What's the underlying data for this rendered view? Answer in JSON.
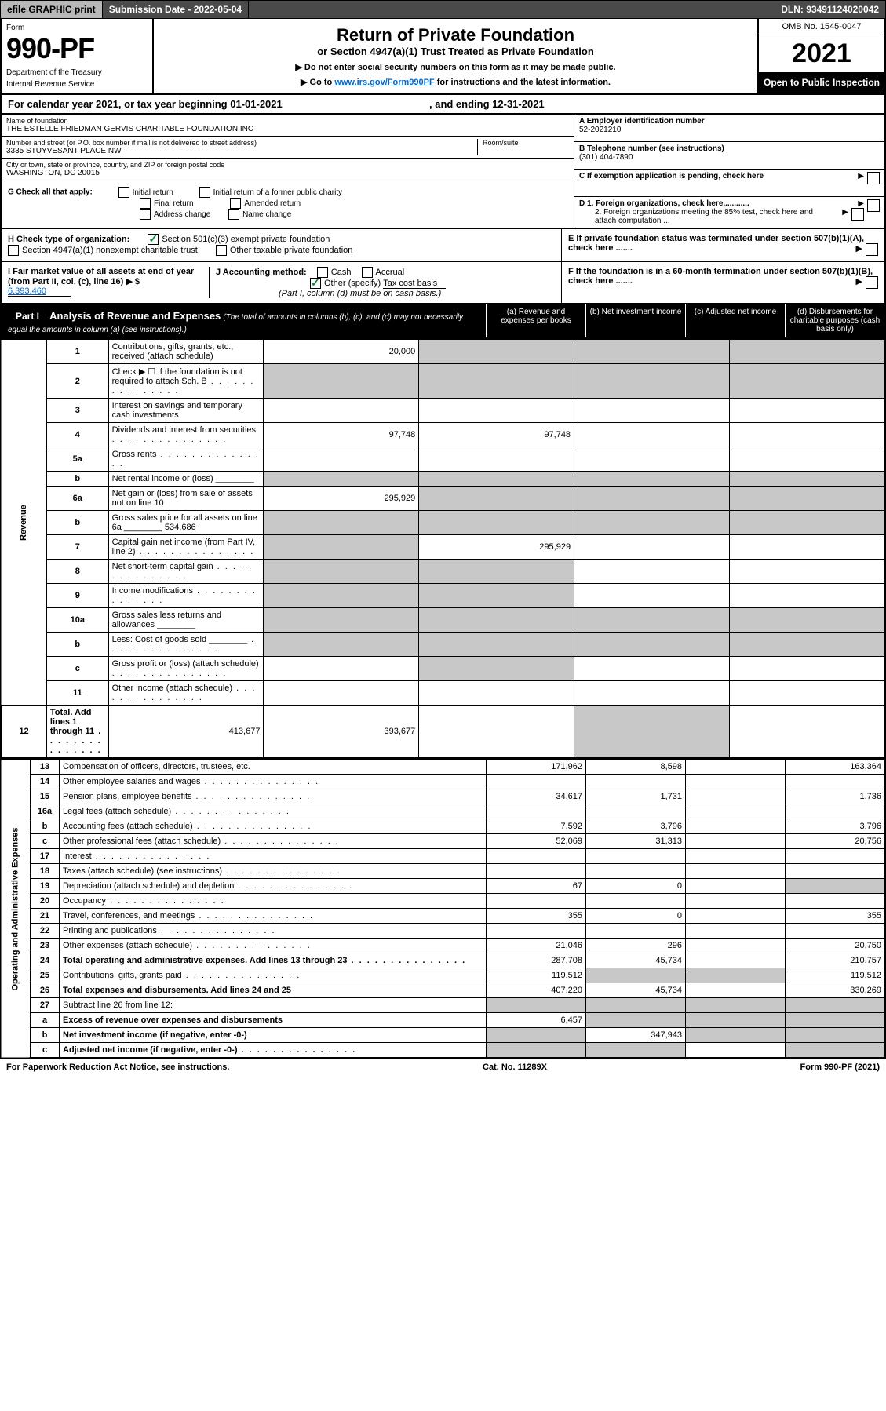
{
  "topbar": {
    "efile": "efile GRAPHIC print",
    "subdate_lbl": "Submission Date - ",
    "subdate": "2022-05-04",
    "dln_lbl": "DLN: ",
    "dln": "93491124020042"
  },
  "header": {
    "form": "Form",
    "num": "990-PF",
    "dept": "Department of the Treasury",
    "irs": "Internal Revenue Service",
    "title": "Return of Private Foundation",
    "sub1": "or Section 4947(a)(1) Trust Treated as Private Foundation",
    "sub2a": "▶ Do not enter social security numbers on this form as it may be made public.",
    "sub2b": "▶ Go to ",
    "link": "www.irs.gov/Form990PF",
    "sub2c": " for instructions and the latest information.",
    "omb": "OMB No. 1545-0047",
    "year": "2021",
    "open": "Open to Public Inspection"
  },
  "calrow": {
    "a": "For calendar year 2021, or tax year beginning ",
    "b": "01-01-2021",
    "c": ", and ending ",
    "d": "12-31-2021"
  },
  "id": {
    "name_lbl": "Name of foundation",
    "name": "THE ESTELLE FRIEDMAN GERVIS CHARITABLE FOUNDATION INC",
    "addr_lbl": "Number and street (or P.O. box number if mail is not delivered to street address)",
    "room_lbl": "Room/suite",
    "addr": "3335 STUYVESANT PLACE NW",
    "city_lbl": "City or town, state or province, country, and ZIP or foreign postal code",
    "city": "WASHINGTON, DC  20015",
    "a_lbl": "A Employer identification number",
    "a": "52-2021210",
    "b_lbl": "B Telephone number (see instructions)",
    "b": "(301) 404-7890",
    "c_lbl": "C If exemption application is pending, check here",
    "d1_lbl": "D 1. Foreign organizations, check here............",
    "d2_lbl": "2. Foreign organizations meeting the 85% test, check here and attach computation ...",
    "e_lbl": "E  If private foundation status was terminated under section 507(b)(1)(A), check here .......",
    "f_lbl": "F  If the foundation is in a 60-month termination under section 507(b)(1)(B), check here ......."
  },
  "g": {
    "lbl": "G Check all that apply:",
    "o1": "Initial return",
    "o2": "Initial return of a former public charity",
    "o3": "Final return",
    "o4": "Amended return",
    "o5": "Address change",
    "o6": "Name change"
  },
  "h": {
    "lbl": "H Check type of organization:",
    "o1": "Section 501(c)(3) exempt private foundation",
    "o2": "Section 4947(a)(1) nonexempt charitable trust",
    "o3": "Other taxable private foundation"
  },
  "i": {
    "lbl": "I Fair market value of all assets at end of year (from Part II, col. (c), line 16) ▶ $",
    "val": "6,393,460"
  },
  "j": {
    "lbl": "J Accounting method:",
    "o1": "Cash",
    "o2": "Accrual",
    "o3": "Other (specify)",
    "o3v": "Tax cost basis",
    "note": "(Part I, column (d) must be on cash basis.)"
  },
  "part1": {
    "bar": "Part I",
    "title": "Analysis of Revenue and Expenses",
    "note": "(The total of amounts in columns (b), (c), and (d) may not necessarily equal the amounts in column (a) (see instructions).)",
    "ca": "(a)   Revenue and expenses per books",
    "cb": "(b)   Net investment income",
    "cc": "(c)   Adjusted net income",
    "cd": "(d)   Disbursements for charitable purposes (cash basis only)"
  },
  "side": {
    "rev": "Revenue",
    "exp": "Operating and Administrative Expenses"
  },
  "rows": [
    {
      "n": "1",
      "d": "Contributions, gifts, grants, etc., received (attach schedule)",
      "a": "20,000",
      "shade_bcd": true
    },
    {
      "n": "2",
      "d": "Check ▶ ☐ if the foundation is not required to attach Sch. B",
      "dots": true,
      "noamt": true
    },
    {
      "n": "3",
      "d": "Interest on savings and temporary cash investments"
    },
    {
      "n": "4",
      "d": "Dividends and interest from securities",
      "dots": true,
      "a": "97,748",
      "b": "97,748"
    },
    {
      "n": "5a",
      "d": "Gross rents",
      "dots": true
    },
    {
      "n": "b",
      "d": "Net rental income or (loss)",
      "inline": true,
      "noamt": true
    },
    {
      "n": "6a",
      "d": "Net gain or (loss) from sale of assets not on line 10",
      "a": "295,929",
      "shade_bcd": true
    },
    {
      "n": "b",
      "d": "Gross sales price for all assets on line 6a",
      "inline": "534,686",
      "noamt": true,
      "shade_all": true
    },
    {
      "n": "7",
      "d": "Capital gain net income (from Part IV, line 2)",
      "dots": true,
      "b": "295,929",
      "shade_a": true
    },
    {
      "n": "8",
      "d": "Net short-term capital gain",
      "dots": true,
      "shade_ab": true
    },
    {
      "n": "9",
      "d": "Income modifications",
      "dots": true,
      "shade_ab": true
    },
    {
      "n": "10a",
      "d": "Gross sales less returns and allowances",
      "inline": true,
      "noamt": true,
      "shade_all": true
    },
    {
      "n": "b",
      "d": "Less: Cost of goods sold",
      "dots": true,
      "inline": true,
      "noamt": true,
      "shade_all": true
    },
    {
      "n": "c",
      "d": "Gross profit or (loss) (attach schedule)",
      "dots": true,
      "shade_b": true
    },
    {
      "n": "11",
      "d": "Other income (attach schedule)",
      "dots": true
    },
    {
      "n": "12",
      "d": "Total. Add lines 1 through 11",
      "dots": true,
      "bold": true,
      "a": "413,677",
      "b": "393,677",
      "shade_d": true
    }
  ],
  "erows": [
    {
      "n": "13",
      "d": "Compensation of officers, directors, trustees, etc.",
      "a": "171,962",
      "b": "8,598",
      "dd": "163,364"
    },
    {
      "n": "14",
      "d": "Other employee salaries and wages",
      "dots": true
    },
    {
      "n": "15",
      "d": "Pension plans, employee benefits",
      "dots": true,
      "a": "34,617",
      "b": "1,731",
      "dd": "1,736"
    },
    {
      "n": "16a",
      "d": "Legal fees (attach schedule)",
      "dots": true
    },
    {
      "n": "b",
      "d": "Accounting fees (attach schedule)",
      "dots": true,
      "a": "7,592",
      "b": "3,796",
      "dd": "3,796"
    },
    {
      "n": "c",
      "d": "Other professional fees (attach schedule)",
      "dots": true,
      "a": "52,069",
      "b": "31,313",
      "dd": "20,756"
    },
    {
      "n": "17",
      "d": "Interest",
      "dots": true
    },
    {
      "n": "18",
      "d": "Taxes (attach schedule) (see instructions)",
      "dots": true
    },
    {
      "n": "19",
      "d": "Depreciation (attach schedule) and depletion",
      "dots": true,
      "a": "67",
      "b": "0",
      "shade_d": true
    },
    {
      "n": "20",
      "d": "Occupancy",
      "dots": true
    },
    {
      "n": "21",
      "d": "Travel, conferences, and meetings",
      "dots": true,
      "a": "355",
      "b": "0",
      "dd": "355"
    },
    {
      "n": "22",
      "d": "Printing and publications",
      "dots": true
    },
    {
      "n": "23",
      "d": "Other expenses (attach schedule)",
      "dots": true,
      "a": "21,046",
      "b": "296",
      "dd": "20,750"
    },
    {
      "n": "24",
      "d": "Total operating and administrative expenses. Add lines 13 through 23",
      "dots": true,
      "bold": true,
      "a": "287,708",
      "b": "45,734",
      "dd": "210,757"
    },
    {
      "n": "25",
      "d": "Contributions, gifts, grants paid",
      "dots": true,
      "a": "119,512",
      "dd": "119,512",
      "shade_bc": true
    },
    {
      "n": "26",
      "d": "Total expenses and disbursements. Add lines 24 and 25",
      "bold": true,
      "a": "407,220",
      "b": "45,734",
      "dd": "330,269"
    },
    {
      "n": "27",
      "d": "Subtract line 26 from line 12:",
      "shade_all": true
    },
    {
      "n": "a",
      "d": "Excess of revenue over expenses and disbursements",
      "bold": true,
      "a": "6,457",
      "shade_bcd": true
    },
    {
      "n": "b",
      "d": "Net investment income (if negative, enter -0-)",
      "bold": true,
      "b": "347,943",
      "shade_acd": true
    },
    {
      "n": "c",
      "d": "Adjusted net income (if negative, enter -0-)",
      "dots": true,
      "bold": true,
      "shade_abd": true
    }
  ],
  "footer": {
    "left": "For Paperwork Reduction Act Notice, see instructions.",
    "mid": "Cat. No. 11289X",
    "right": "Form 990-PF (2021)"
  }
}
